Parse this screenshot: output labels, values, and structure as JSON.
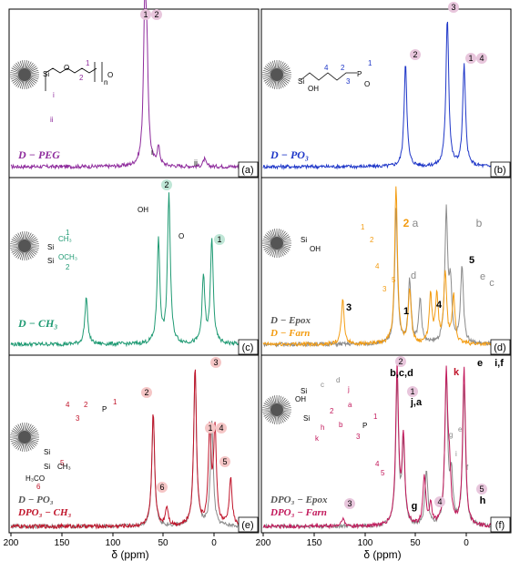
{
  "axis": {
    "xlabel": "δ (ppm)",
    "xticks": [
      "200",
      "150",
      "100",
      "50",
      "0",
      "200",
      "150",
      "100",
      "50",
      "0"
    ]
  },
  "panels": [
    {
      "id": "a",
      "tag": "(a)",
      "legend": [
        "D − PEG"
      ],
      "legend_colors": [
        "#8e2b9c"
      ],
      "peak_labels": [
        "1",
        "2",
        "i",
        "ii"
      ],
      "chem": [
        "1",
        "2",
        "n",
        "i",
        "ii",
        "O",
        "O",
        "Si"
      ]
    },
    {
      "id": "b",
      "tag": "(b)",
      "legend": [
        "D − PO₃"
      ],
      "legend_colors": [
        "#1f37c8"
      ],
      "peak_labels": [
        "2",
        "3",
        "1",
        "4"
      ],
      "chem": [
        "4",
        "2",
        "3",
        "1",
        "OH",
        "O",
        "P",
        "Si"
      ]
    },
    {
      "id": "c",
      "tag": "(c)",
      "legend": [
        "D − CH₃"
      ],
      "legend_colors": [
        "#1f9a73"
      ],
      "peak_labels": [
        "2",
        "1"
      ],
      "chem": [
        "1",
        "2",
        "CH₃",
        "OCH₃",
        "OH",
        "Si",
        "O"
      ]
    },
    {
      "id": "d",
      "tag": "(d)",
      "legend": [
        "D − Epox",
        "D − Farn"
      ],
      "legend_colors": [
        "#555555",
        "#f39c12"
      ],
      "peak_labels": [
        "2",
        "a",
        "b",
        "d",
        "e",
        "c",
        "5",
        "4",
        "3",
        "1"
      ],
      "chem": [
        "1",
        "2",
        "3",
        "4",
        "5",
        "Si",
        "OH"
      ]
    },
    {
      "id": "e",
      "tag": "(e)",
      "legend": [
        "D − PO₃",
        "DPO₃ − CH₃"
      ],
      "legend_colors": [
        "#555555",
        "#c0142a"
      ],
      "peak_labels": [
        "3",
        "2",
        "1",
        "4",
        "6",
        "5"
      ],
      "chem": [
        "1",
        "2",
        "3",
        "4",
        "5",
        "6",
        "H₃CO",
        "CH₃",
        "Si",
        "P"
      ]
    },
    {
      "id": "f",
      "tag": "(f)",
      "legend": [
        "DPO₃ − Epox",
        "DPO₃ − Farn"
      ],
      "legend_colors": [
        "#555555",
        "#c2185b"
      ],
      "peak_labels": [
        "2",
        "b,c,d",
        "1",
        "j,a",
        "k",
        "e",
        "i,f",
        "g",
        "4",
        "5",
        "h",
        "3"
      ],
      "chem": [
        "1",
        "2",
        "3",
        "4",
        "5",
        "a",
        "b",
        "c",
        "d",
        "e",
        "f",
        "g",
        "h",
        "i",
        "j",
        "k",
        "Si",
        "OH",
        "P"
      ]
    }
  ],
  "colors": {
    "purple": "#8e2b9c",
    "blue": "#1f37c8",
    "teal": "#1f9a73",
    "gray": "#8a8a8a",
    "orange": "#f39c12",
    "red": "#c0142a",
    "pink": "#c2185b",
    "badge": "#e8c6dc"
  },
  "chart_data": [
    {
      "type": "line",
      "title": "",
      "xlabel": "δ (ppm)",
      "ylabel": "",
      "xlim": [
        200,
        -35
      ],
      "series": [
        {
          "name": "D − PEG",
          "peaks_ppm": [
            72,
            70,
            59,
            15
          ],
          "heights": [
            1.0,
            0.55,
            0.12,
            0.05
          ]
        }
      ]
    },
    {
      "type": "line",
      "title": "",
      "xlabel": "δ (ppm)",
      "ylabel": "",
      "xlim": [
        200,
        -35
      ],
      "series": [
        {
          "name": "D − PO₃",
          "peaks_ppm": [
            64,
            24,
            8
          ],
          "heights": [
            0.7,
            1.0,
            0.68
          ]
        }
      ]
    },
    {
      "type": "line",
      "title": "",
      "xlabel": "δ (ppm)",
      "ylabel": "",
      "xlim": [
        200,
        -35
      ],
      "series": [
        {
          "name": "D − CH₃",
          "peaks_ppm": [
            128,
            59,
            49,
            16,
            8
          ],
          "heights": [
            0.3,
            0.65,
            0.95,
            0.42,
            0.66
          ]
        }
      ]
    },
    {
      "type": "line",
      "title": "",
      "xlabel": "δ (ppm)",
      "ylabel": "",
      "xlim": [
        200,
        -35
      ],
      "series": [
        {
          "name": "D − Epox",
          "peaks_ppm": [
            73,
            60,
            50,
            25,
            21,
            10
          ],
          "heights": [
            0.85,
            0.4,
            0.28,
            0.82,
            0.35,
            0.5
          ]
        },
        {
          "name": "D − Farn",
          "peaks_ppm": [
            124,
            73,
            60,
            40,
            34,
            26,
            18
          ],
          "heights": [
            0.28,
            1.0,
            0.35,
            0.3,
            0.3,
            0.45,
            0.3
          ]
        }
      ]
    },
    {
      "type": "line",
      "title": "",
      "xlabel": "δ (ppm)",
      "ylabel": "",
      "xlim": [
        200,
        -35
      ],
      "series": [
        {
          "name": "D − PO₃",
          "peaks_ppm": [
            64,
            24,
            8
          ],
          "heights": [
            0.72,
            1.0,
            0.66
          ]
        },
        {
          "name": "DPO₃ − CH₃",
          "peaks_ppm": [
            64,
            51,
            24,
            10,
            5,
            -10
          ],
          "heights": [
            0.72,
            0.12,
            1.0,
            0.6,
            0.6,
            0.3
          ]
        }
      ]
    },
    {
      "type": "line",
      "title": "",
      "xlabel": "δ (ppm)",
      "ylabel": "",
      "xlim": [
        200,
        -35
      ],
      "series": [
        {
          "name": "DPO₃ − Epox",
          "peaks_ppm": [
            72,
            66,
            44,
            25,
            20,
            8
          ],
          "heights": [
            0.9,
            0.5,
            0.35,
            0.95,
            0.3,
            0.9
          ]
        },
        {
          "name": "DPO₃ − Farn",
          "peaks_ppm": [
            124,
            72,
            66,
            46,
            40,
            25,
            22,
            8
          ],
          "heights": [
            0.05,
            1.0,
            0.55,
            0.3,
            0.12,
            0.95,
            0.3,
            1.0
          ]
        }
      ]
    }
  ]
}
